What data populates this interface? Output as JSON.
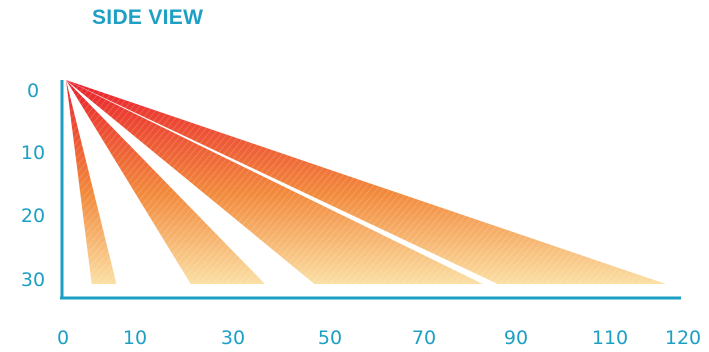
{
  "title": "SIDE VIEW",
  "colors": {
    "accent": "#1ea0c3",
    "beam_top": "#e8202e",
    "beam_mid": "#f28a3c",
    "beam_bottom": "#fbe1a6",
    "background": "#ffffff"
  },
  "axes": {
    "x_tick_labels": [
      "0",
      "10",
      "30",
      "50",
      "70",
      "90",
      "110",
      "120"
    ],
    "y_tick_labels": [
      "0",
      "10",
      "20",
      "30"
    ]
  },
  "beams": [
    {
      "name": "beam-1",
      "near_end": 6,
      "far_end": 11
    },
    {
      "name": "beam-2",
      "near_end": 26,
      "far_end": 41
    },
    {
      "name": "beam-3",
      "near_end": 51,
      "far_end": 85
    },
    {
      "name": "beam-4",
      "near_end": 88,
      "far_end": 122
    }
  ]
}
